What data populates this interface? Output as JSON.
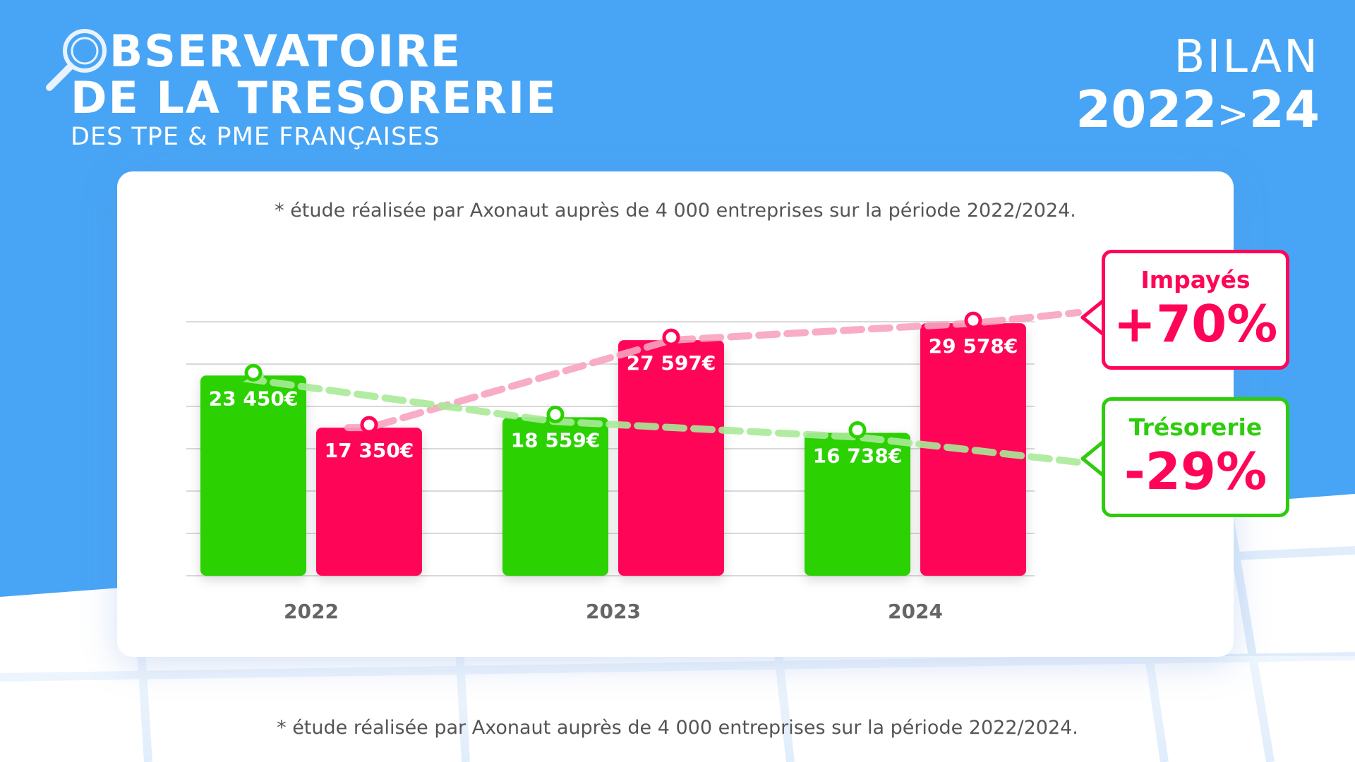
{
  "header": {
    "title_line1": "BSERVATOIRE",
    "title_line2": "DE LA TRESORERIE",
    "subtitle": "DES TPE & PME FRANÇAISES",
    "badge_top": "BILAN",
    "badge_year_start": "2022",
    "badge_sep": ">",
    "badge_year_end": "24"
  },
  "notes": {
    "card_note": "* étude réalisée par Axonaut auprès de 4 000 entreprises sur la période 2022/2024.",
    "footer_note": "* étude réalisée par Axonaut auprès de 4 000 entreprises sur la période 2022/2024."
  },
  "callouts": {
    "impayes": {
      "label": "Impayés",
      "value": "+70%"
    },
    "tresorerie": {
      "label": "Trésorerie",
      "value": "-29%"
    }
  },
  "colors": {
    "background_blue": "#48a5f5",
    "green": "#2bd100",
    "pink": "#ff0557",
    "pink_dash": "#f7a3c0",
    "green_dash": "#a8ea98"
  },
  "icons": {
    "title_icon": "magnifier-icon"
  },
  "chart_data": {
    "type": "bar",
    "categories": [
      "2022",
      "2023",
      "2024"
    ],
    "series": [
      {
        "values": [
          23450,
          18559,
          16738
        ],
        "labels": [
          "23 450€",
          "18 559€",
          "16 738€"
        ],
        "color": "#2bd100"
      },
      {
        "values": [
          17350,
          27597,
          29578
        ],
        "labels": [
          "17 350€",
          "27 597€",
          "29 578€"
        ],
        "color": "#ff0557"
      }
    ],
    "ylim": [
      0,
      30000
    ],
    "grid": true,
    "trend_lines": true
  }
}
